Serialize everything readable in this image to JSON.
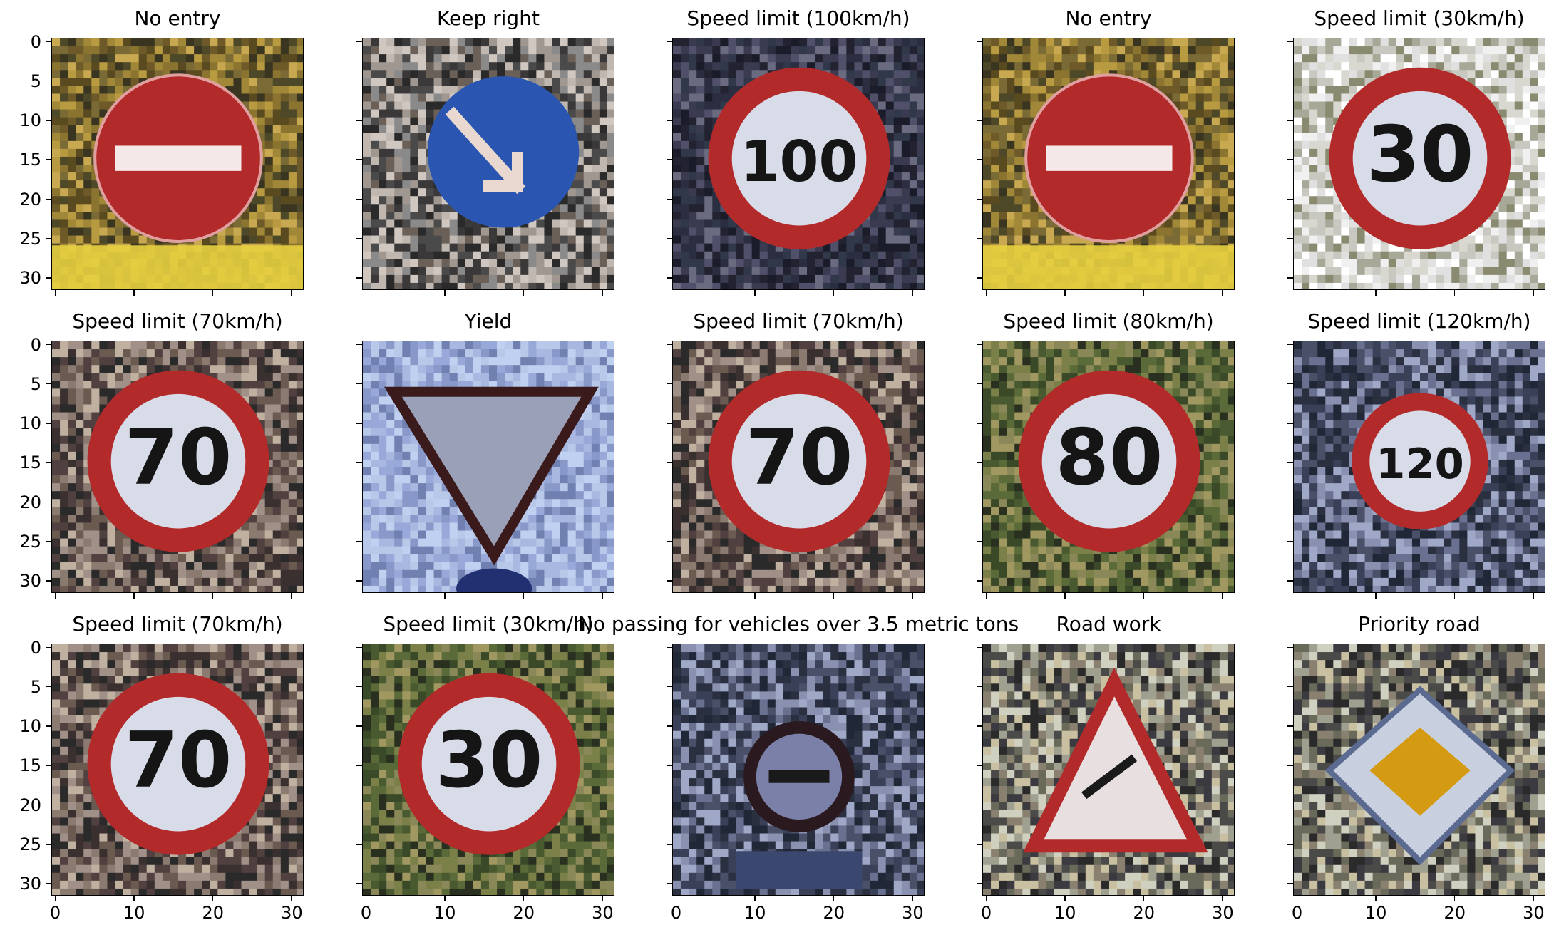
{
  "figure": {
    "panels": [
      {
        "title": "No entry",
        "sign": "no-entry",
        "bg": "autumn"
      },
      {
        "title": "Keep right",
        "sign": "keep-right",
        "bg": "fence"
      },
      {
        "title": "Speed limit (100km/h)",
        "sign": "speed",
        "text": "100",
        "bg": "dark"
      },
      {
        "title": "No entry",
        "sign": "no-entry",
        "bg": "autumn"
      },
      {
        "title": "Speed limit (30km/h)",
        "sign": "speed",
        "text": "30",
        "bg": "light"
      },
      {
        "title": "Speed limit (70km/h)",
        "sign": "speed",
        "text": "70",
        "bg": "mottled"
      },
      {
        "title": "Yield",
        "sign": "yield",
        "bg": "blue"
      },
      {
        "title": "Speed limit (70km/h)",
        "sign": "speed",
        "text": "70",
        "bg": "mottled"
      },
      {
        "title": "Speed limit (80km/h)",
        "sign": "speed",
        "text": "80",
        "bg": "green"
      },
      {
        "title": "Speed limit (120km/h)",
        "sign": "speed",
        "text": "120",
        "bg": "bluegray"
      },
      {
        "title": "Speed limit (70km/h)",
        "sign": "speed",
        "text": "70",
        "bg": "mottled"
      },
      {
        "title": "Speed limit (30km/h)",
        "sign": "speed",
        "text": "30",
        "bg": "green"
      },
      {
        "title": "No passing for vehicles over 3.5 metric tons",
        "sign": "no-passing",
        "bg": "bluegray"
      },
      {
        "title": "Road work",
        "sign": "road-work",
        "bg": "noisy"
      },
      {
        "title": "Priority road",
        "sign": "priority",
        "bg": "noisy"
      }
    ],
    "y_ticks": [
      "0",
      "5",
      "10",
      "15",
      "20",
      "25",
      "30"
    ],
    "x_ticks": [
      "0",
      "10",
      "20",
      "30"
    ]
  },
  "colors": {
    "sign_red": "#b32a2a",
    "sign_blue": "#2a55b0",
    "priority_yellow": "#d49b12"
  }
}
